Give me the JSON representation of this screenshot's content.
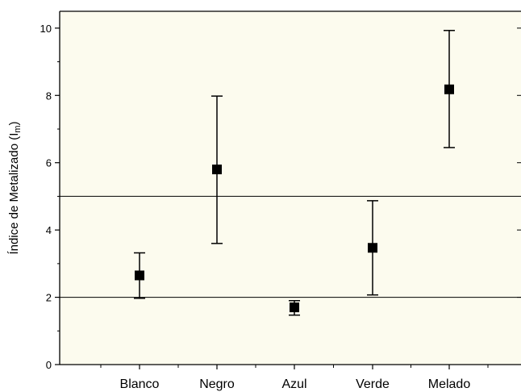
{
  "chart_data": {
    "type": "scatter",
    "title": "",
    "xlabel": "",
    "ylabel": "Índice de Metalizado (I",
    "ylabel_sub": "m",
    "ylabel_close": ")",
    "categories": [
      "Blanco",
      "Negro",
      "Azul",
      "Verde",
      "Melado"
    ],
    "series": [
      {
        "values": [
          2.65,
          5.8,
          1.7,
          3.47,
          8.18
        ],
        "error_low": [
          1.97,
          3.6,
          1.47,
          2.07,
          6.45
        ],
        "error_high": [
          3.32,
          7.98,
          1.9,
          4.87,
          9.93
        ]
      }
    ],
    "reference_lines": [
      2,
      5
    ],
    "ylim": [
      0,
      10.5
    ],
    "yticks": [
      0,
      2,
      4,
      6,
      8,
      10
    ],
    "grid": false,
    "legend": "none",
    "colors": {
      "plot_background": "#fcfbee",
      "marker": "#000000",
      "reference_line": "#000000"
    }
  }
}
